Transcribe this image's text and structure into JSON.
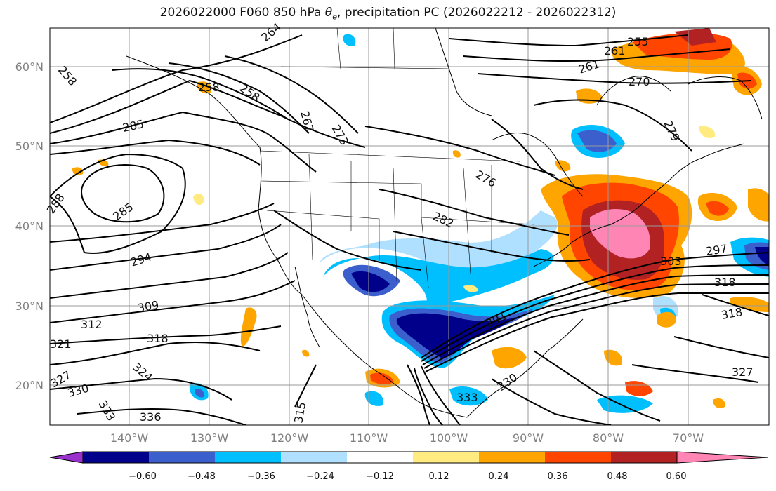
{
  "title_main": "2026022000 F060 850 hPa ",
  "title_theta": "θ",
  "title_sub": "e",
  "title_rest": ", precipitation PC (2026022212 - 2026022312)",
  "lat_labels": [
    "60°N",
    "50°N",
    "40°N",
    "30°N",
    "20°N"
  ],
  "lon_labels": [
    "140°W",
    "130°W",
    "120°W",
    "110°W",
    "100°W",
    "90°W",
    "80°W",
    "70°W"
  ],
  "contour_labels": [
    "264",
    "255",
    "258",
    "261",
    "261",
    "270",
    "267",
    "273",
    "279",
    "276",
    "282",
    "285",
    "288",
    "285",
    "294",
    "297",
    "303",
    "309",
    "312",
    "318",
    "318",
    "318",
    "321",
    "324",
    "327",
    "327",
    "330",
    "333",
    "336",
    "315",
    "330",
    "333",
    "291",
    "258",
    "258"
  ],
  "colorbar": {
    "ticks": [
      "−0.60",
      "−0.48",
      "−0.36",
      "−0.24",
      "−0.12",
      "0.12",
      "0.24",
      "0.36",
      "0.48",
      "0.60"
    ],
    "colors": [
      "#9932cc",
      "#00008b",
      "#3b5fcd",
      "#00bfff",
      "#b0e0ff",
      "#ffffff",
      "#ffeb80",
      "#ffa500",
      "#ff4500",
      "#b22222",
      "#ff85b4"
    ]
  }
}
